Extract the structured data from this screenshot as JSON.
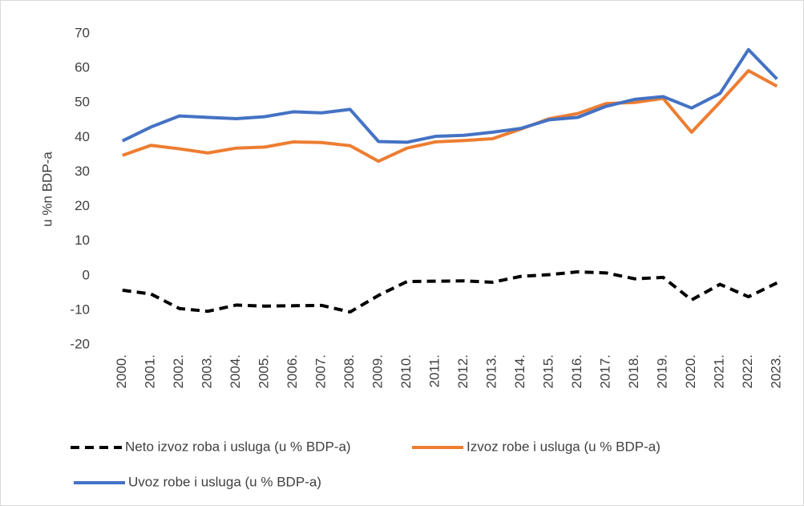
{
  "chart_data": {
    "type": "line",
    "y_label": "u %n BDP-a",
    "categories": [
      "2000.",
      "2001.",
      "2002.",
      "2003.",
      "2004.",
      "2005.",
      "2006.",
      "2007.",
      "2008.",
      "2009.",
      "2010.",
      "2011.",
      "2012.",
      "2013.",
      "2014.",
      "2015.",
      "2016.",
      "2017.",
      "2018.",
      "2019.",
      "2020.",
      "2021.",
      "2022.",
      "2023."
    ],
    "series": [
      {
        "name": "Neto izvoz roba i usluga (u % BDP-a)",
        "color": "#000000",
        "dashed": true,
        "values": [
          -4.2,
          -5.3,
          -9.5,
          -10.3,
          -8.5,
          -8.8,
          -8.7,
          -8.6,
          -10.5,
          -5.7,
          -1.7,
          -1.6,
          -1.5,
          -1.9,
          -0.2,
          0.3,
          1.1,
          0.8,
          -0.9,
          -0.5,
          -7.0,
          -2.5,
          -6.1,
          -2.1
        ]
      },
      {
        "name": "Izvoz robe i usluga (u % BDP-a)",
        "color": "#ed7d31",
        "dashed": false,
        "values": [
          34.8,
          37.7,
          36.7,
          35.5,
          36.9,
          37.2,
          38.7,
          38.5,
          37.6,
          33.1,
          36.9,
          38.7,
          39.1,
          39.6,
          42.4,
          45.4,
          46.9,
          49.8,
          50.1,
          51.3,
          41.5,
          50.2,
          59.3,
          54.8
        ]
      },
      {
        "name": "Uvoz robe i usluga (u % BDP-a)",
        "color": "#4472c4",
        "dashed": false,
        "values": [
          39.0,
          43.0,
          46.2,
          45.8,
          45.4,
          46.0,
          47.4,
          47.1,
          48.1,
          38.8,
          38.6,
          40.3,
          40.6,
          41.5,
          42.6,
          45.1,
          45.8,
          49.0,
          51.0,
          51.8,
          48.5,
          52.7,
          65.4,
          56.9
        ]
      }
    ],
    "ylim": [
      -20,
      70
    ],
    "yticks": [
      -20,
      -10,
      0,
      10,
      20,
      30,
      40,
      50,
      60,
      70
    ],
    "grid": false,
    "legend": "bottom"
  }
}
